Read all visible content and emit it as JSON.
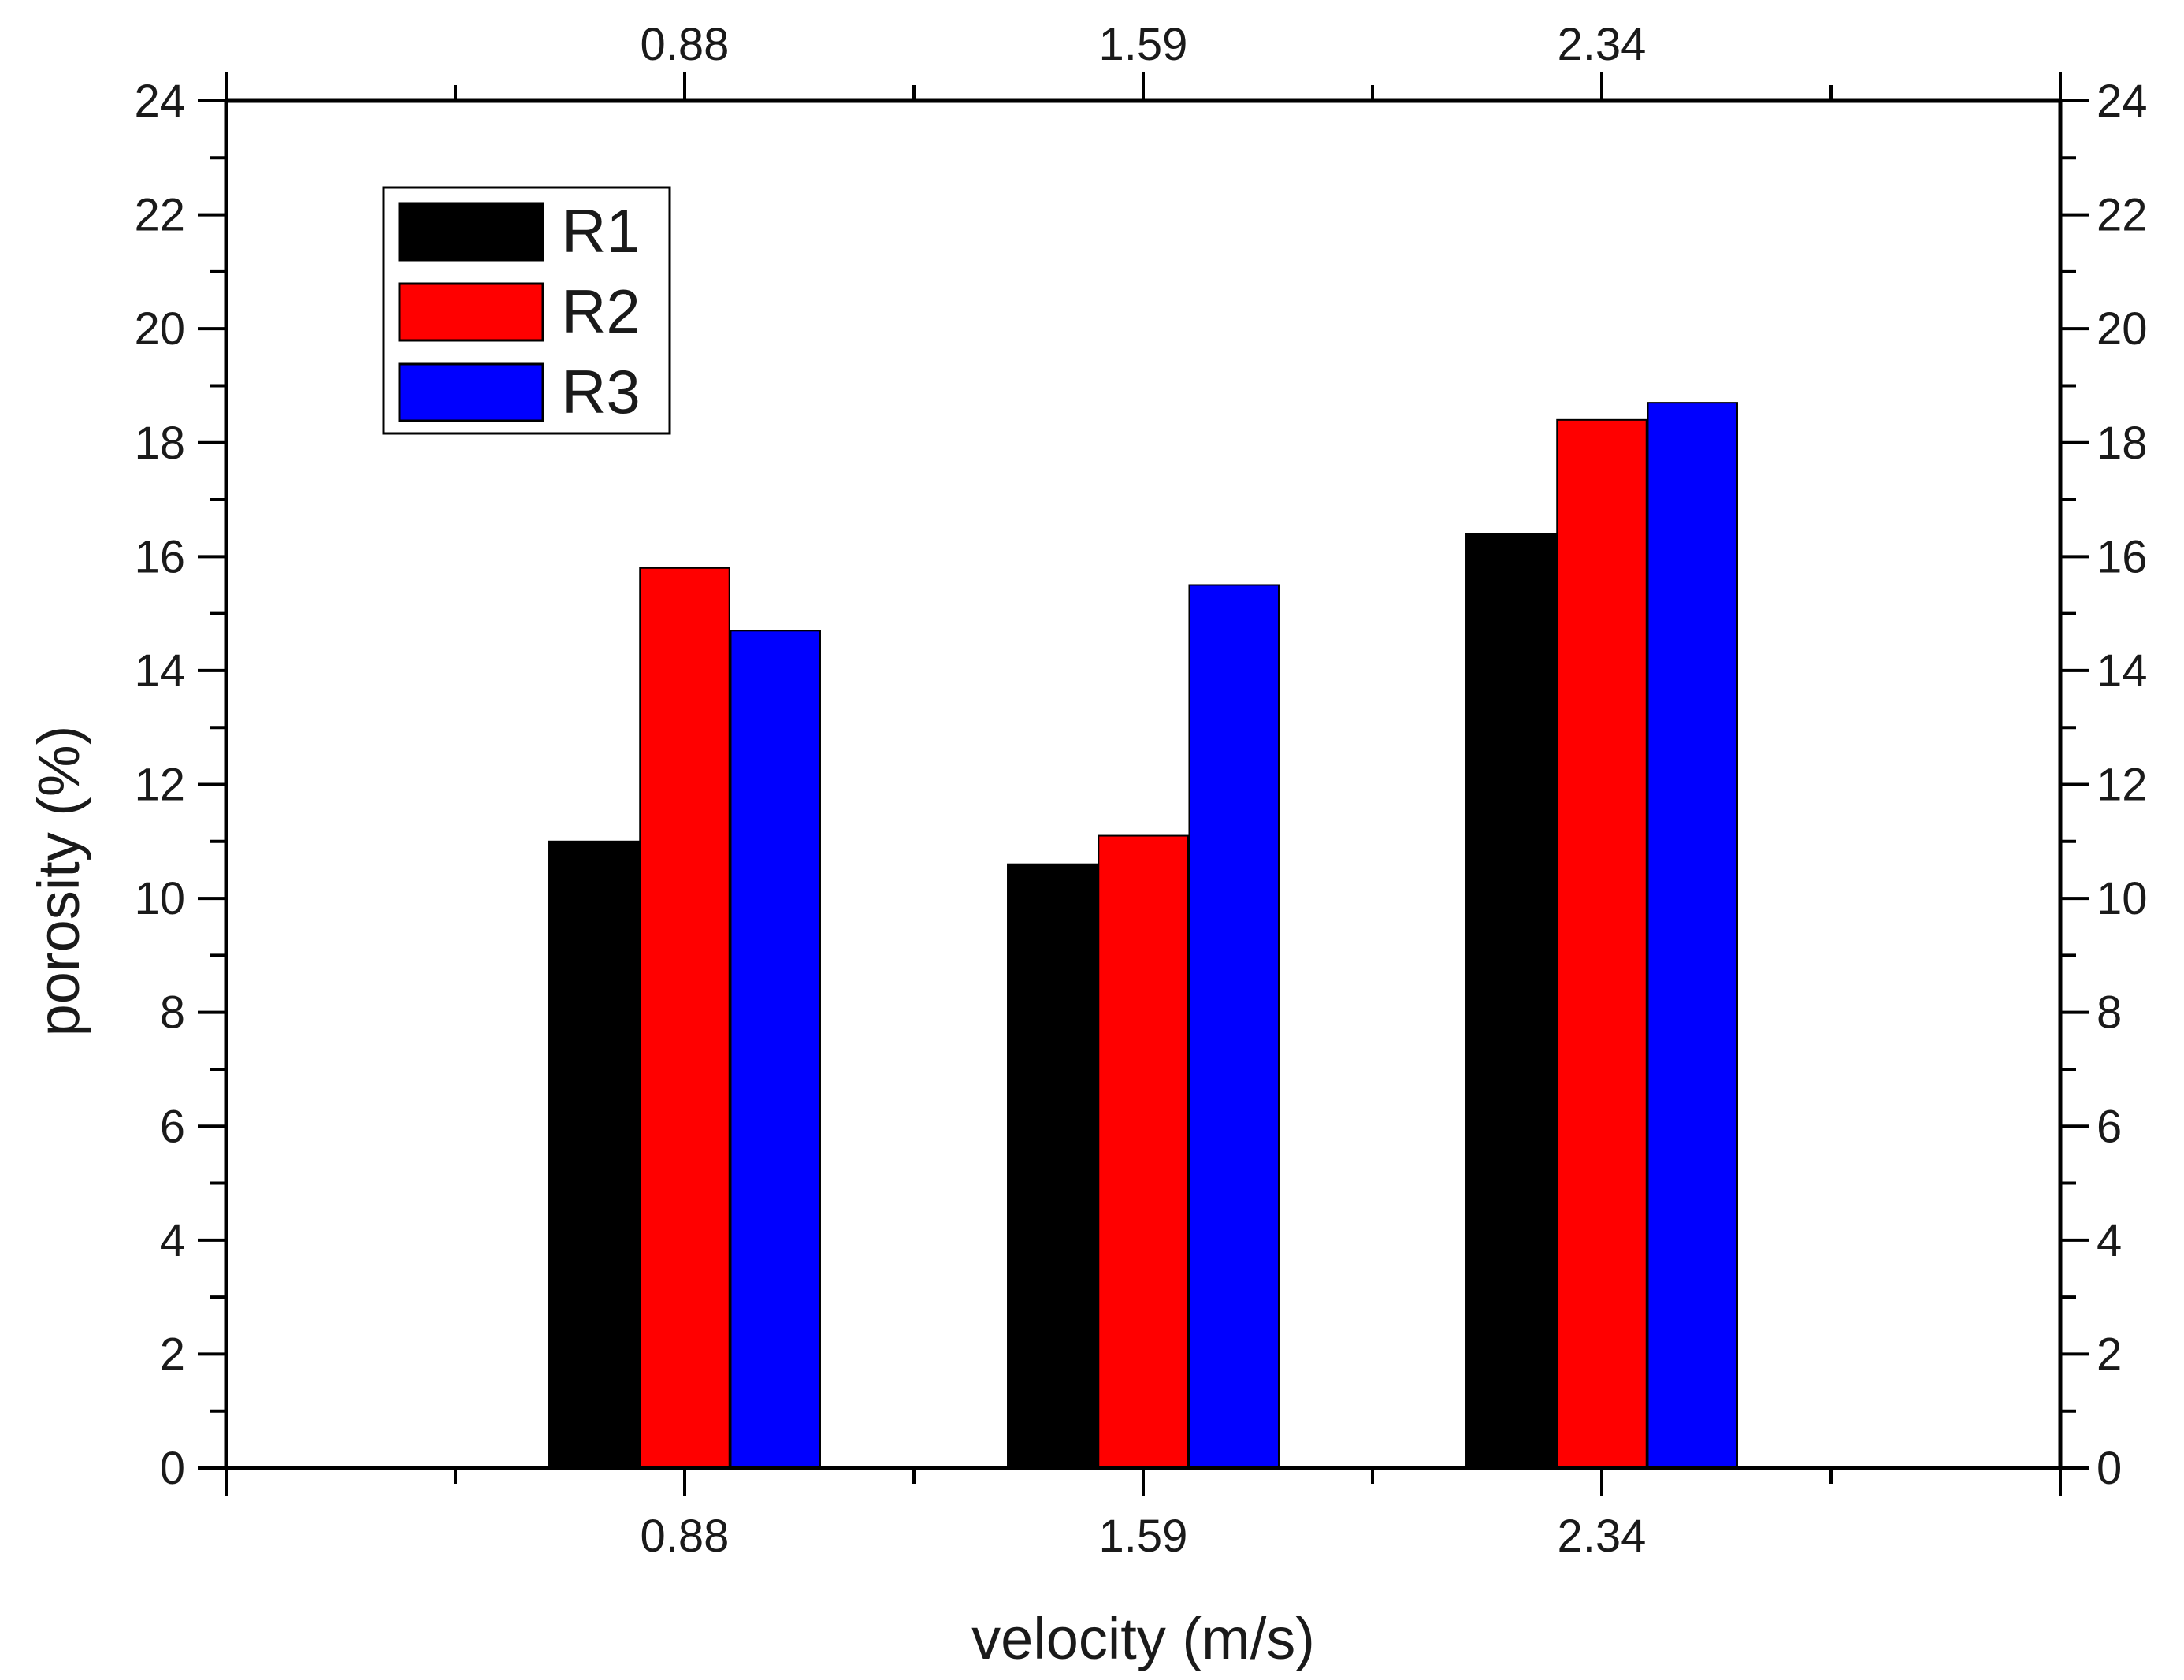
{
  "chart_data": {
    "type": "bar",
    "title": "",
    "xlabel": "velocity (m/s)",
    "ylabel": "porosity (%)",
    "categories": [
      "0.88",
      "1.59",
      "2.34"
    ],
    "ylim": [
      0,
      24
    ],
    "yticks": [
      "0",
      "2",
      "4",
      "6",
      "8",
      "10",
      "12",
      "14",
      "16",
      "18",
      "20",
      "22",
      "24"
    ],
    "series": [
      {
        "name": "R1",
        "color": "#000000",
        "values": [
          11.0,
          10.6,
          16.4
        ]
      },
      {
        "name": "R2",
        "color": "#ff0000",
        "values": [
          15.8,
          11.1,
          18.4
        ]
      },
      {
        "name": "R3",
        "color": "#0000ff",
        "values": [
          14.7,
          15.5,
          18.7
        ]
      }
    ],
    "legend": {
      "position": "top-left"
    },
    "grid": false
  }
}
